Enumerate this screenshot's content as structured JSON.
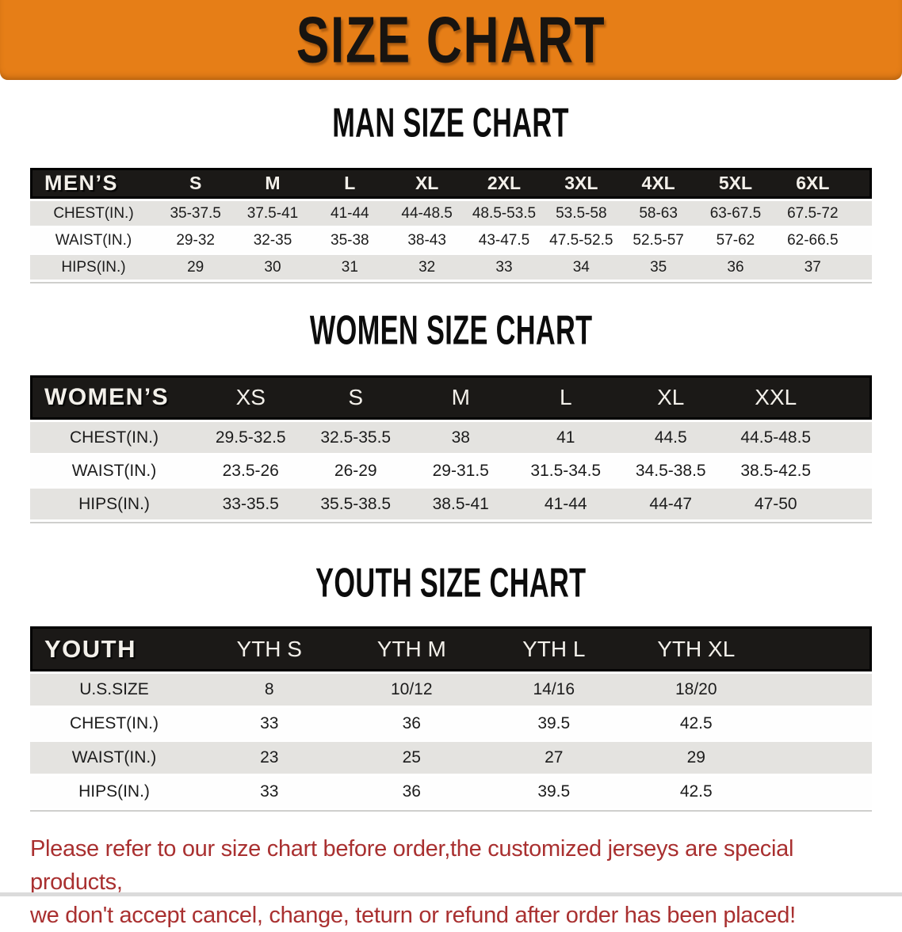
{
  "banner": {
    "title": "SIZE CHART",
    "bg_color": "#e67e17"
  },
  "sections": [
    {
      "id": "men",
      "heading": "MAN SIZE CHART",
      "header_label": "MEN’S",
      "columns": [
        "S",
        "M",
        "L",
        "XL",
        "2XL",
        "3XL",
        "4XL",
        "5XL",
        "6XL"
      ],
      "rows": [
        {
          "label": "CHEST(IN.)",
          "values": [
            "35-37.5",
            "37.5-41",
            "41-44",
            "44-48.5",
            "48.5-53.5",
            "53.5-58",
            "58-63",
            "63-67.5",
            "67.5-72"
          ]
        },
        {
          "label": "WAIST(IN.)",
          "values": [
            "29-32",
            "32-35",
            "35-38",
            "38-43",
            "43-47.5",
            "47.5-52.5",
            "52.5-57",
            "57-62",
            "62-66.5"
          ]
        },
        {
          "label": "HIPS(IN.)",
          "values": [
            "29",
            "30",
            "31",
            "32",
            "33",
            "34",
            "35",
            "36",
            "37"
          ]
        }
      ]
    },
    {
      "id": "women",
      "heading": "WOMEN SIZE CHART",
      "header_label": "WOMEN’S",
      "columns": [
        "XS",
        "S",
        "M",
        "L",
        "XL",
        "XXL"
      ],
      "rows": [
        {
          "label": "CHEST(IN.)",
          "values": [
            "29.5-32.5",
            "32.5-35.5",
            "38",
            "41",
            "44.5",
            "44.5-48.5"
          ]
        },
        {
          "label": "WAIST(IN.)",
          "values": [
            "23.5-26",
            "26-29",
            "29-31.5",
            "31.5-34.5",
            "34.5-38.5",
            "38.5-42.5"
          ]
        },
        {
          "label": "HIPS(IN.)",
          "values": [
            "33-35.5",
            "35.5-38.5",
            "38.5-41",
            "41-44",
            "44-47",
            "47-50"
          ]
        }
      ]
    },
    {
      "id": "youth",
      "heading": "YOUTH SIZE CHART",
      "header_label": "YOUTH",
      "columns": [
        "YTH S",
        "YTH M",
        "YTH L",
        "YTH XL"
      ],
      "rows": [
        {
          "label": "U.S.SIZE",
          "values": [
            "8",
            "10/12",
            "14/16",
            "18/20"
          ]
        },
        {
          "label": "CHEST(IN.)",
          "values": [
            "33",
            "36",
            "39.5",
            "42.5"
          ]
        },
        {
          "label": "WAIST(IN.)",
          "values": [
            "23",
            "25",
            "27",
            "29"
          ]
        },
        {
          "label": "HIPS(IN.)",
          "values": [
            "33",
            "36",
            "39.5",
            "42.5"
          ]
        }
      ]
    }
  ],
  "disclaimer": {
    "color": "#a93030",
    "lines": [
      "Please refer to our size chart before order,the customized jerseys are special products,",
      "we don't accept cancel, change, teturn or refund after order has been placed!"
    ]
  }
}
